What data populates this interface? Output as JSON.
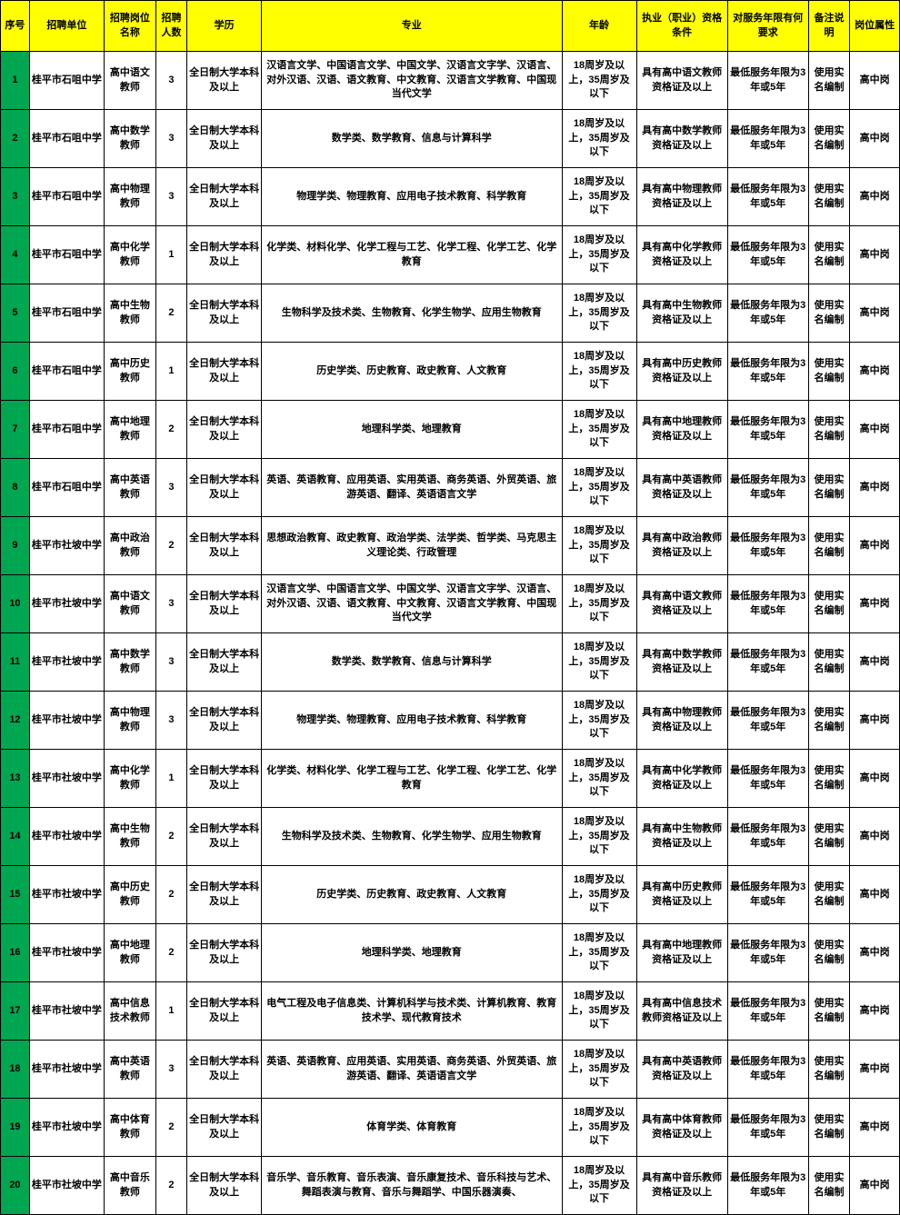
{
  "columns": [
    {
      "key": "seq",
      "label": "序号",
      "cls": "col-seq"
    },
    {
      "key": "unit",
      "label": "招聘单位",
      "cls": "col-unit"
    },
    {
      "key": "post",
      "label": "招聘岗位名称",
      "cls": "col-post"
    },
    {
      "key": "num",
      "label": "招聘人数",
      "cls": "col-num"
    },
    {
      "key": "edu",
      "label": "学历",
      "cls": "col-edu"
    },
    {
      "key": "major",
      "label": "专业",
      "cls": "col-major"
    },
    {
      "key": "age",
      "label": "年龄",
      "cls": "col-age"
    },
    {
      "key": "qual",
      "label": "执业（职业）资格条件",
      "cls": "col-qual"
    },
    {
      "key": "serv",
      "label": "对服务年限有何要求",
      "cls": "col-serv"
    },
    {
      "key": "note",
      "label": "备注说明",
      "cls": "col-note"
    },
    {
      "key": "attr",
      "label": "岗位属性",
      "cls": "col-attr"
    }
  ],
  "defaults": {
    "edu": "全日制大学本科及以上",
    "age": "18周岁及以上，35周岁及以下",
    "serv": "最低服务年限为3年或5年",
    "note": "使用实名编制",
    "attr": "高中岗"
  },
  "rows": [
    {
      "seq": "1",
      "unit": "桂平市石咀中学",
      "post": "高中语文教师",
      "num": "3",
      "major": "汉语言文学、中国语言文学、中国文学、汉语言文字学、汉语言、对外汉语、汉语、语文教育、中文教育、汉语言文学教育、中国现当代文学",
      "qual": "具有高中语文教师资格证及以上"
    },
    {
      "seq": "2",
      "unit": "桂平市石咀中学",
      "post": "高中数学教师",
      "num": "3",
      "major": "数学类、数学教育、信息与计算科学",
      "qual": "具有高中数学教师资格证及以上"
    },
    {
      "seq": "3",
      "unit": "桂平市石咀中学",
      "post": "高中物理教师",
      "num": "3",
      "major": "物理学类、物理教育、应用电子技术教育、科学教育",
      "qual": "具有高中物理教师资格证及以上"
    },
    {
      "seq": "4",
      "unit": "桂平市石咀中学",
      "post": "高中化学教师",
      "num": "1",
      "major": "化学类、材料化学、化学工程与工艺、化学工程、化学工艺、化学教育",
      "qual": "具有高中化学教师资格证及以上"
    },
    {
      "seq": "5",
      "unit": "桂平市石咀中学",
      "post": "高中生物教师",
      "num": "2",
      "major": "生物科学及技术类、生物教育、化学生物学、应用生物教育",
      "qual": "具有高中生物教师资格证及以上"
    },
    {
      "seq": "6",
      "unit": "桂平市石咀中学",
      "post": "高中历史教师",
      "num": "1",
      "major": "历史学类、历史教育、政史教育、人文教育",
      "qual": "具有高中历史教师资格证及以上"
    },
    {
      "seq": "7",
      "unit": "桂平市石咀中学",
      "post": "高中地理教师",
      "num": "2",
      "major": "地理科学类、地理教育",
      "qual": "具有高中地理教师资格证及以上"
    },
    {
      "seq": "8",
      "unit": "桂平市石咀中学",
      "post": "高中英语教师",
      "num": "3",
      "major": "英语、英语教育、应用英语、实用英语、商务英语、外贸英语、旅游英语、翻译、英语语言文学",
      "qual": "具有高中英语教师资格证及以上"
    },
    {
      "seq": "9",
      "unit": "桂平市社坡中学",
      "post": "高中政治教师",
      "num": "2",
      "major": "思想政治教育、政史教育、政治学类、法学类、哲学类、马克思主义理论类、行政管理",
      "qual": "具有高中政治教师资格证及以上"
    },
    {
      "seq": "10",
      "unit": "桂平市社坡中学",
      "post": "高中语文教师",
      "num": "3",
      "major": "汉语言文学、中国语言文学、中国文学、汉语言文字学、汉语言、对外汉语、汉语、语文教育、中文教育、汉语言文学教育、中国现当代文学",
      "qual": "具有高中语文教师资格证及以上"
    },
    {
      "seq": "11",
      "unit": "桂平市社坡中学",
      "post": "高中数学教师",
      "num": "3",
      "major": "数学类、数学教育、信息与计算科学",
      "qual": "具有高中数学教师资格证及以上"
    },
    {
      "seq": "12",
      "unit": "桂平市社坡中学",
      "post": "高中物理教师",
      "num": "3",
      "major": "物理学类、物理教育、应用电子技术教育、科学教育",
      "qual": "具有高中物理教师资格证及以上"
    },
    {
      "seq": "13",
      "unit": "桂平市社坡中学",
      "post": "高中化学教师",
      "num": "1",
      "major": "化学类、材料化学、化学工程与工艺、化学工程、化学工艺、化学教育",
      "qual": "具有高中化学教师资格证及以上"
    },
    {
      "seq": "14",
      "unit": "桂平市社坡中学",
      "post": "高中生物教师",
      "num": "2",
      "major": "生物科学及技术类、生物教育、化学生物学、应用生物教育",
      "qual": "具有高中生物教师资格证及以上"
    },
    {
      "seq": "15",
      "unit": "桂平市社坡中学",
      "post": "高中历史教师",
      "num": "2",
      "major": "历史学类、历史教育、政史教育、人文教育",
      "qual": "具有高中历史教师资格证及以上"
    },
    {
      "seq": "16",
      "unit": "桂平市社坡中学",
      "post": "高中地理教师",
      "num": "2",
      "major": "地理科学类、地理教育",
      "qual": "具有高中地理教师资格证及以上"
    },
    {
      "seq": "17",
      "unit": "桂平市社坡中学",
      "post": "高中信息技术教师",
      "num": "1",
      "major": "电气工程及电子信息类、计算机科学与技术类、计算机教育、教育技术学、现代教育技术",
      "qual": "具有高中信息技术教师资格证及以上"
    },
    {
      "seq": "18",
      "unit": "桂平市社坡中学",
      "post": "高中英语教师",
      "num": "3",
      "major": "英语、英语教育、应用英语、实用英语、商务英语、外贸英语、旅游英语、翻译、英语语言文学",
      "qual": "具有高中英语教师资格证及以上"
    },
    {
      "seq": "19",
      "unit": "桂平市社坡中学",
      "post": "高中体育教师",
      "num": "2",
      "major": "体育学类、体育教育",
      "qual": "具有高中体育教师资格证及以上"
    },
    {
      "seq": "20",
      "unit": "桂平市社坡中学",
      "post": "高中音乐教师",
      "num": "2",
      "major": "音乐学、音乐教育、音乐表演、音乐康复技术、音乐科技与艺术、舞蹈表演与教育、音乐与舞蹈学、中国乐器演奏、",
      "qual": "具有高中音乐教师资格证及以上"
    }
  ]
}
